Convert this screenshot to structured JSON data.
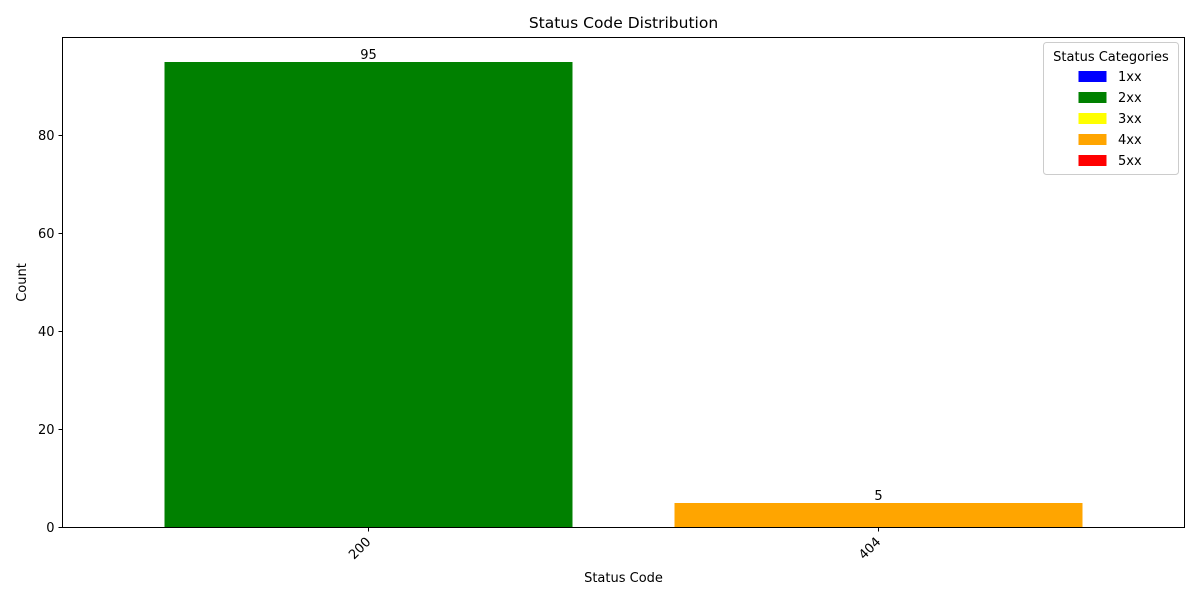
{
  "chart_data": {
    "type": "bar",
    "title": "Status Code Distribution",
    "xlabel": "Status Code",
    "ylabel": "Count",
    "categories": [
      "200",
      "404"
    ],
    "values": [
      95,
      5
    ],
    "bar_colors": [
      "#008000",
      "#ffa500"
    ],
    "data_labels": [
      "95",
      "5"
    ],
    "ylim": [
      0,
      100
    ],
    "yticks": [
      0,
      20,
      40,
      60,
      80
    ],
    "grid": false,
    "x_tick_rotation": 45,
    "legend": {
      "title": "Status Categories",
      "placement": "top-right",
      "items": [
        {
          "label": "1xx",
          "color": "#0000ff"
        },
        {
          "label": "2xx",
          "color": "#008000"
        },
        {
          "label": "3xx",
          "color": "#ffff00"
        },
        {
          "label": "4xx",
          "color": "#ffa500"
        },
        {
          "label": "5xx",
          "color": "#ff0000"
        }
      ]
    }
  }
}
